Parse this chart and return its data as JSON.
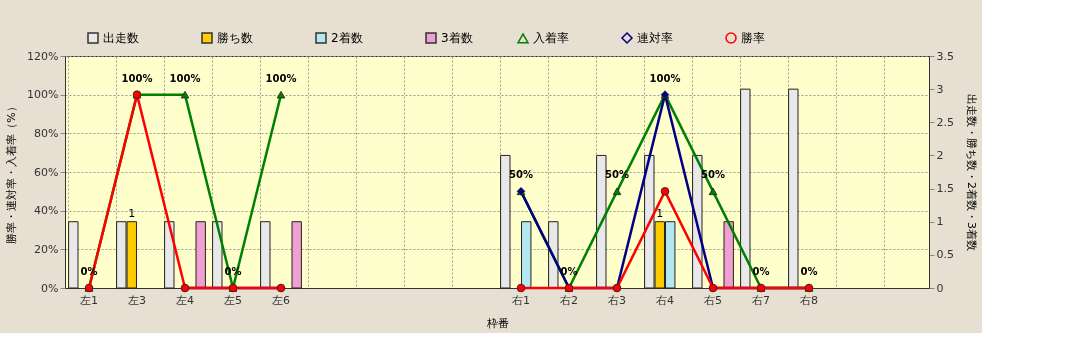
{
  "chart_data": {
    "type": "bar",
    "xlabel": "枠番",
    "ylabel": "勝率・連対率・入着率（%）",
    "y2label": "出走数・勝ち数・2着数・3着数",
    "categories": [
      "左1",
      "左3",
      "左4",
      "左5",
      "左6",
      null,
      null,
      null,
      null,
      "右1",
      "右2",
      "右3",
      "右4",
      "右5",
      "右7",
      "右8",
      null,
      null
    ],
    "ylim": [
      0,
      120
    ],
    "yticks": [
      {
        "value": 0,
        "label": "0%"
      },
      {
        "value": 20,
        "label": "20%"
      },
      {
        "value": 40,
        "label": "40%"
      },
      {
        "value": 60,
        "label": "60%"
      },
      {
        "value": 80,
        "label": "80%"
      },
      {
        "value": 100,
        "label": "100%"
      },
      {
        "value": 120,
        "label": "120%"
      }
    ],
    "y2lim": [
      0,
      3.5
    ],
    "y2ticks": [
      0,
      0.5,
      1,
      1.5,
      2,
      2.5,
      3,
      3.5
    ],
    "grid": true,
    "legend": "top",
    "series": [
      {
        "name": "出走数",
        "axis": "y2",
        "color": "#e8e8e8",
        "values": [
          1,
          1,
          1,
          1,
          1,
          null,
          null,
          null,
          null,
          2,
          1,
          2,
          2,
          2,
          3,
          3,
          null,
          null
        ]
      },
      {
        "name": "勝ち数",
        "axis": "y2",
        "color": "#ffcc00",
        "values": [
          0,
          1,
          0,
          0,
          0,
          null,
          null,
          null,
          null,
          0,
          0,
          0,
          1,
          0,
          0,
          0,
          null,
          null
        ],
        "value_labels": [
          null,
          "1",
          null,
          null,
          null,
          null,
          null,
          null,
          null,
          null,
          null,
          null,
          "1",
          null,
          null,
          null,
          null,
          null
        ]
      },
      {
        "name": "2着数",
        "axis": "y2",
        "color": "#b4e8f0",
        "values": [
          0,
          0,
          0,
          0,
          0,
          null,
          null,
          null,
          null,
          1,
          0,
          0,
          1,
          0,
          0,
          0,
          null,
          null
        ]
      },
      {
        "name": "3着数",
        "axis": "y2",
        "color": "#f0a0d0",
        "values": [
          0,
          0,
          1,
          0,
          1,
          null,
          null,
          null,
          null,
          0,
          0,
          0,
          0,
          1,
          0,
          0,
          null,
          null
        ]
      },
      {
        "name": "入着率",
        "type": "line",
        "marker": "triangle",
        "color": "#008000",
        "values": [
          0,
          100,
          100,
          0,
          100,
          null,
          null,
          null,
          null,
          50,
          0,
          50,
          100,
          50,
          0,
          0,
          null,
          null
        ],
        "value_labels": [
          "0%",
          "100%",
          "100%",
          "0%",
          "100%",
          null,
          null,
          null,
          null,
          "50%",
          "0%",
          "50%",
          "100%",
          "50%",
          "0%",
          "0%",
          null,
          null
        ]
      },
      {
        "name": "連対率",
        "type": "line",
        "marker": "diamond",
        "color": "#000080",
        "values": [
          0,
          null,
          0,
          0,
          0,
          null,
          null,
          null,
          null,
          50,
          0,
          0,
          100,
          0,
          0,
          0,
          null,
          null
        ]
      },
      {
        "name": "勝率",
        "type": "line",
        "marker": "circle",
        "color": "#ff0000",
        "values": [
          0,
          100,
          0,
          0,
          0,
          null,
          null,
          null,
          null,
          0,
          0,
          0,
          50,
          0,
          0,
          0,
          null,
          null
        ]
      }
    ]
  }
}
